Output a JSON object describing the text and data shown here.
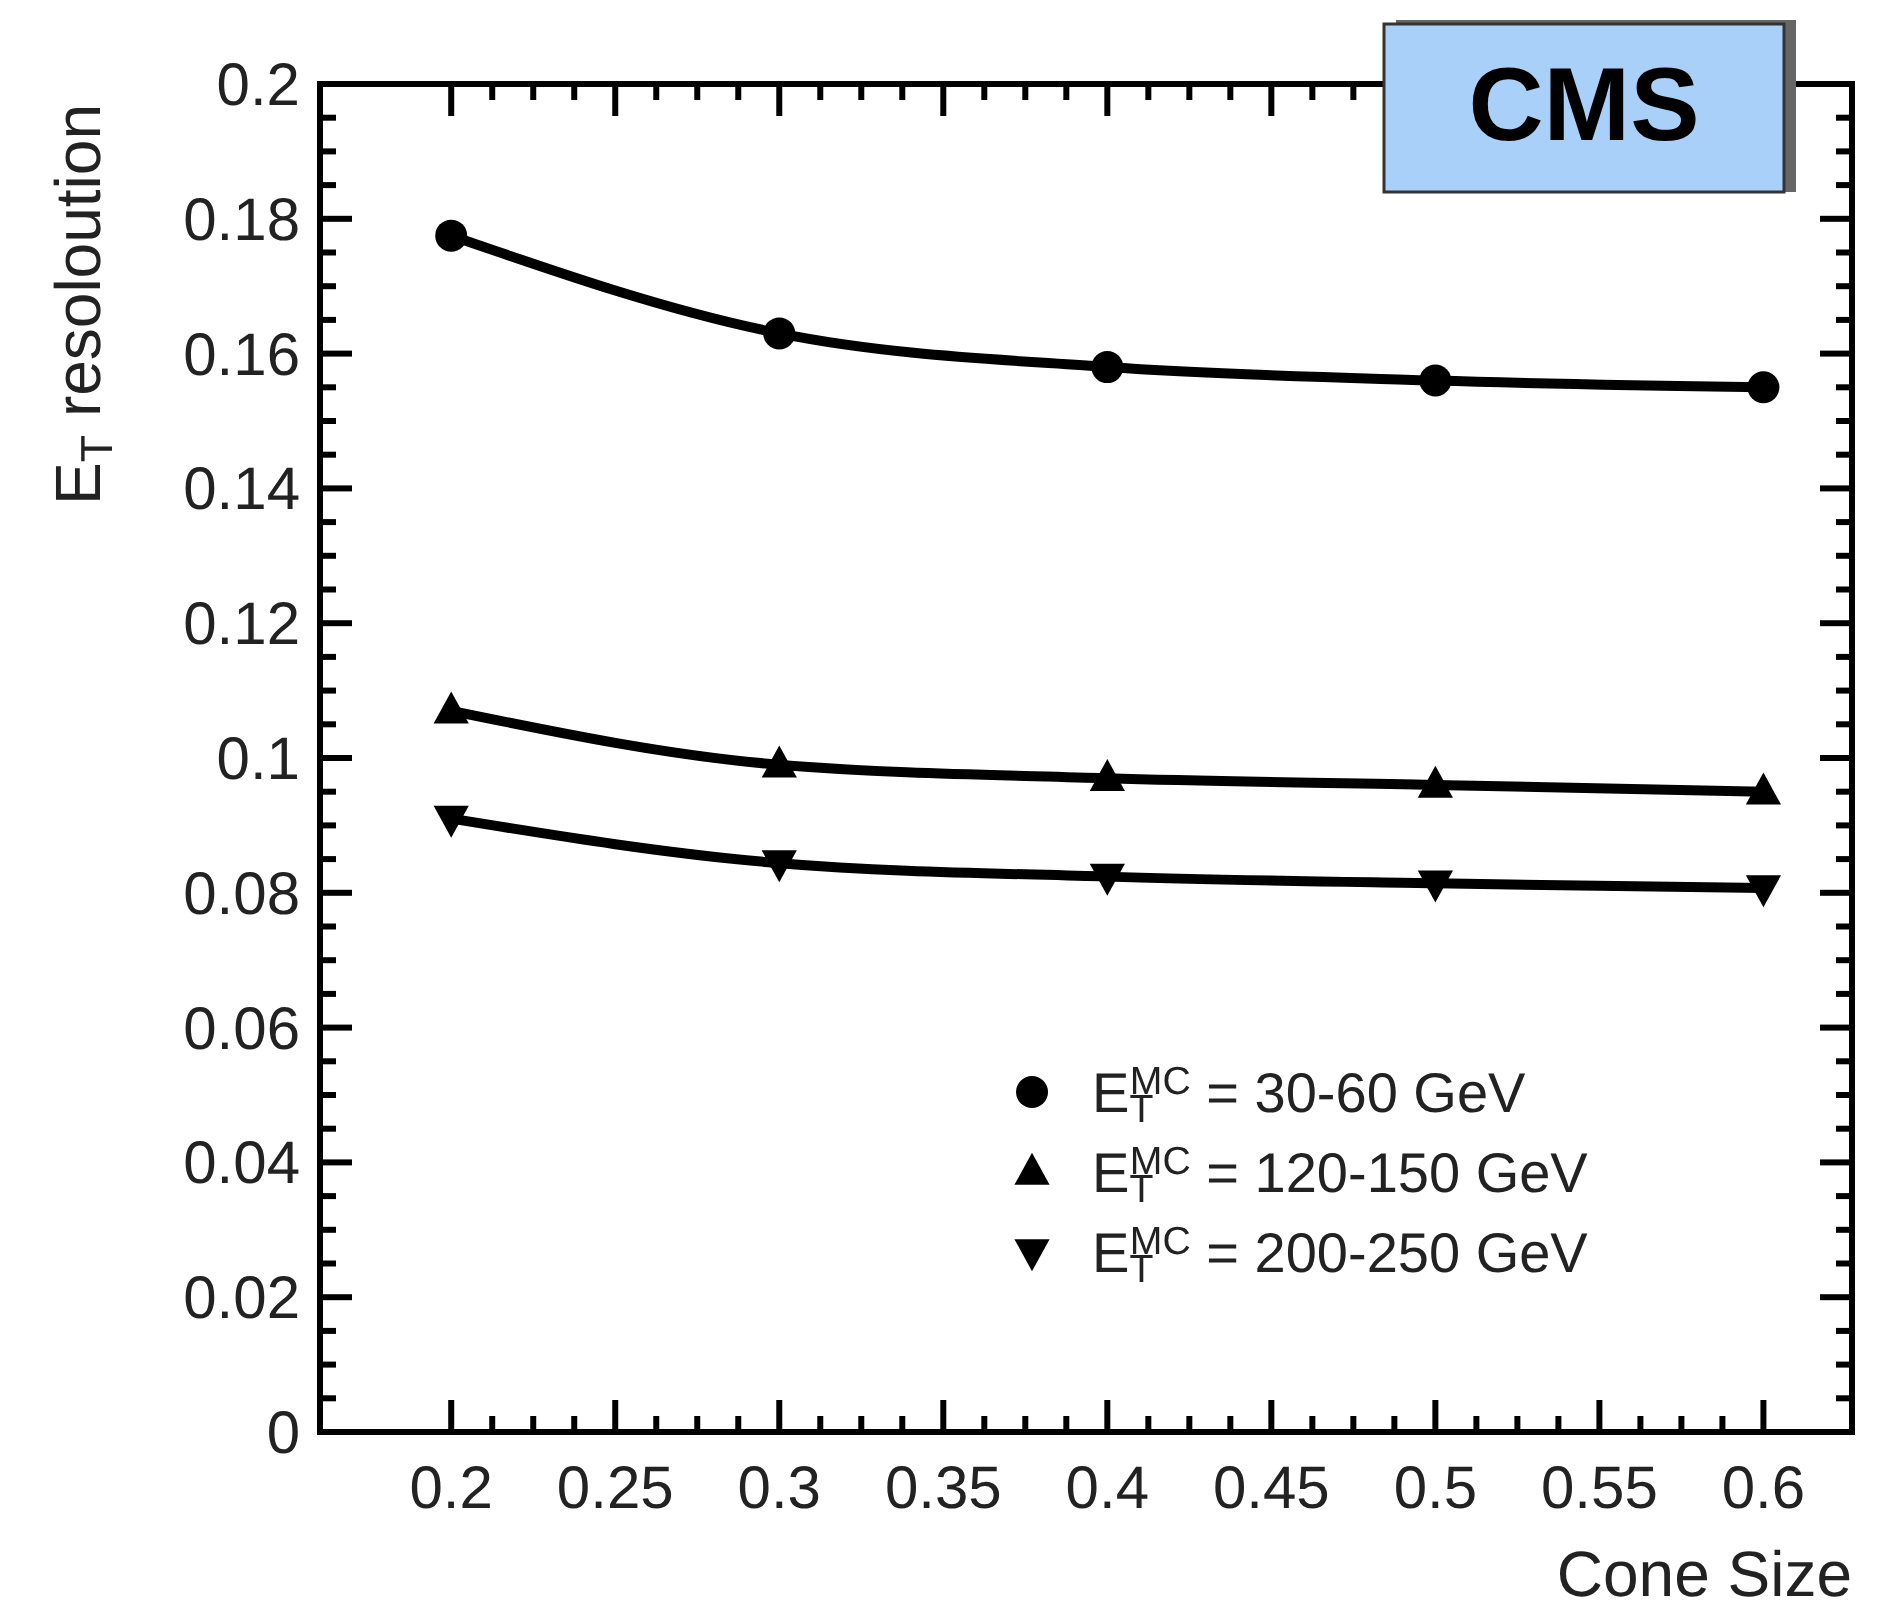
{
  "chart_data": {
    "type": "line",
    "xlabel": "Cone Size",
    "ylabel": "E$_{T}$ resoloution",
    "x": [
      0.2,
      0.3,
      0.4,
      0.5,
      0.6
    ],
    "series": [
      {
        "name": "E$_{T}$$^{MC}$ = 30-60 GeV",
        "color": "#000000",
        "marker": "circle",
        "values": [
          0.1775,
          0.163,
          0.158,
          0.156,
          0.155
        ]
      },
      {
        "name": "E$_{T}$$^{MC}$ = 120-150 GeV",
        "color": "#000000",
        "marker": "triangle",
        "values": [
          0.107,
          0.099,
          0.097,
          0.096,
          0.095
        ]
      },
      {
        "name": "E$_{T}$$^{MC}$ = 200-250 GeV",
        "color": "#000000",
        "marker": "triangle-down",
        "values": [
          0.091,
          0.0844,
          0.0824,
          0.0814,
          0.0807
        ]
      }
    ],
    "xlim": [
      0.16,
      0.627
    ],
    "ylim": [
      0,
      0.2
    ],
    "xticks": [
      0.2,
      0.25,
      0.3,
      0.35,
      0.4,
      0.45,
      0.5,
      0.55,
      0.6
    ],
    "yticks": [
      0,
      0.02,
      0.04,
      0.06,
      0.08,
      0.1,
      0.12,
      0.14,
      0.16,
      0.18,
      0.2
    ],
    "grid": false,
    "legend": "bottom right",
    "line_style": "solid",
    "annotations": [
      "CMS"
    ]
  }
}
